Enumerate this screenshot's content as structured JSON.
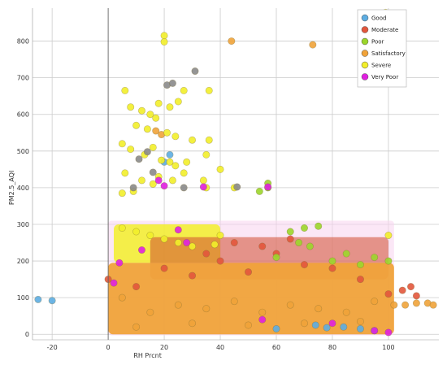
{
  "chart_data": {
    "type": "scatter",
    "xlabel": "RH Prcnt",
    "ylabel": "PM2.5_AQI",
    "xlim": [
      -27,
      118
    ],
    "ylim": [
      -15,
      890
    ],
    "x_ticks": [
      -20,
      0,
      20,
      40,
      60,
      80,
      100
    ],
    "y_ticks": [
      0,
      100,
      200,
      300,
      400,
      500,
      600,
      700,
      800
    ],
    "grid": true,
    "legend_placement": "top-right",
    "series": [
      {
        "name": "Good",
        "color": "#5dade2",
        "points": [
          [
            -25,
            95
          ],
          [
            -20,
            92
          ],
          [
            20,
            470
          ],
          [
            22,
            490
          ],
          [
            60,
            15
          ],
          [
            74,
            25
          ],
          [
            84,
            20
          ],
          [
            90,
            15
          ],
          [
            95,
            10
          ],
          [
            78,
            18
          ]
        ]
      },
      {
        "name": "Moderate",
        "color": "#e2563c",
        "points": [
          [
            0,
            150
          ],
          [
            10,
            130
          ],
          [
            20,
            180
          ],
          [
            30,
            160
          ],
          [
            40,
            200
          ],
          [
            50,
            170
          ],
          [
            60,
            220
          ],
          [
            70,
            190
          ],
          [
            80,
            180
          ],
          [
            90,
            150
          ],
          [
            100,
            110
          ],
          [
            105,
            120
          ],
          [
            108,
            130
          ],
          [
            110,
            105
          ],
          [
            35,
            220
          ],
          [
            55,
            240
          ],
          [
            65,
            260
          ],
          [
            45,
            250
          ]
        ]
      },
      {
        "name": "Poor",
        "color": "#9bd62b",
        "points": [
          [
            54,
            390
          ],
          [
            57,
            400
          ],
          [
            57,
            412
          ],
          [
            70,
            290
          ],
          [
            75,
            295
          ],
          [
            65,
            280
          ],
          [
            68,
            250
          ],
          [
            72,
            240
          ],
          [
            60,
            210
          ],
          [
            80,
            200
          ],
          [
            90,
            190
          ],
          [
            95,
            210
          ],
          [
            100,
            200
          ],
          [
            85,
            220
          ]
        ]
      },
      {
        "name": "Satisfactory",
        "color": "#f0a33a",
        "points": [
          [
            44,
            800
          ],
          [
            73,
            790
          ],
          [
            17,
            555
          ],
          [
            19,
            545
          ],
          [
            5,
            100
          ],
          [
            15,
            60
          ],
          [
            25,
            80
          ],
          [
            35,
            70
          ],
          [
            45,
            90
          ],
          [
            55,
            60
          ],
          [
            65,
            80
          ],
          [
            75,
            70
          ],
          [
            85,
            60
          ],
          [
            95,
            90
          ],
          [
            102,
            80
          ],
          [
            106,
            80
          ],
          [
            110,
            85
          ],
          [
            114,
            85
          ],
          [
            116,
            80
          ],
          [
            10,
            20
          ],
          [
            30,
            30
          ],
          [
            50,
            25
          ],
          [
            70,
            30
          ],
          [
            90,
            35
          ]
        ]
      },
      {
        "name": "Severe",
        "color": "#f2ee2a",
        "points": [
          [
            20,
            815
          ],
          [
            20,
            798
          ],
          [
            99,
            878
          ],
          [
            6,
            665
          ],
          [
            27,
            665
          ],
          [
            36,
            665
          ],
          [
            8,
            620
          ],
          [
            12,
            610
          ],
          [
            15,
            600
          ],
          [
            17,
            590
          ],
          [
            18,
            630
          ],
          [
            22,
            620
          ],
          [
            25,
            635
          ],
          [
            10,
            570
          ],
          [
            14,
            560
          ],
          [
            21,
            550
          ],
          [
            24,
            540
          ],
          [
            30,
            530
          ],
          [
            36,
            530
          ],
          [
            5,
            520
          ],
          [
            8,
            505
          ],
          [
            13,
            490
          ],
          [
            16,
            510
          ],
          [
            19,
            475
          ],
          [
            22,
            470
          ],
          [
            24,
            460
          ],
          [
            28,
            470
          ],
          [
            35,
            490
          ],
          [
            6,
            440
          ],
          [
            12,
            420
          ],
          [
            16,
            410
          ],
          [
            18,
            430
          ],
          [
            23,
            420
          ],
          [
            27,
            440
          ],
          [
            35,
            400
          ],
          [
            40,
            450
          ],
          [
            45,
            400
          ],
          [
            5,
            385
          ],
          [
            9,
            390
          ],
          [
            34,
            420
          ],
          [
            100,
            270
          ],
          [
            5,
            290
          ],
          [
            10,
            280
          ],
          [
            15,
            270
          ],
          [
            20,
            260
          ],
          [
            25,
            250
          ],
          [
            30,
            240
          ],
          [
            40,
            270
          ],
          [
            38,
            245
          ]
        ]
      },
      {
        "name": "Very Poor",
        "color": "#e020e0",
        "points": [
          [
            20,
            405
          ],
          [
            34,
            402
          ],
          [
            57,
            402
          ],
          [
            25,
            285
          ],
          [
            18,
            420
          ],
          [
            4,
            195
          ],
          [
            2,
            140
          ],
          [
            12,
            230
          ],
          [
            28,
            250
          ],
          [
            95,
            10
          ],
          [
            100,
            5
          ],
          [
            55,
            40
          ],
          [
            80,
            30
          ]
        ]
      }
    ],
    "extra_marks": {
      "color": "#8a8a8a",
      "points": [
        [
          11,
          478
        ],
        [
          14,
          498
        ],
        [
          21,
          680
        ],
        [
          23,
          685
        ],
        [
          31,
          718
        ],
        [
          9,
          400
        ],
        [
          16,
          442
        ],
        [
          27,
          400
        ],
        [
          46,
          402
        ]
      ]
    }
  }
}
